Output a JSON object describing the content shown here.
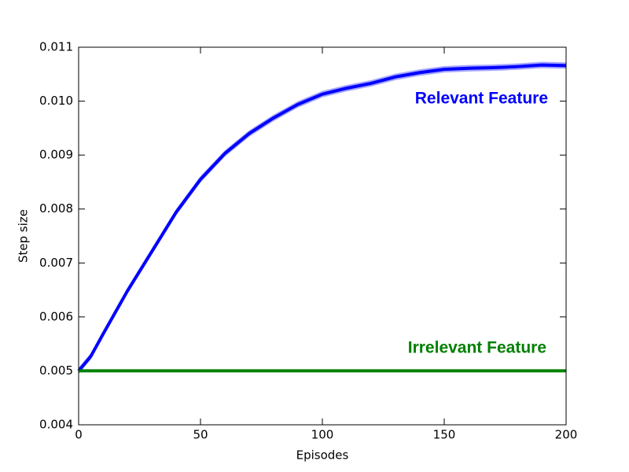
{
  "chart_data": {
    "type": "line",
    "x_label": "Episodes",
    "y_label": "Step size",
    "xlim": [
      0,
      200
    ],
    "ylim": [
      0.004,
      0.011
    ],
    "xticks": [
      0,
      50,
      100,
      150,
      200
    ],
    "yticks": [
      0.004,
      0.005,
      0.006,
      0.007,
      0.008,
      0.009,
      {
        "value": 0.01,
        "label": "0.010"
      },
      0.011
    ],
    "series": [
      {
        "name": "Relevant Feature",
        "color": "#0000ff",
        "x": [
          0,
          5,
          10,
          20,
          30,
          40,
          50,
          60,
          70,
          80,
          90,
          100,
          110,
          120,
          130,
          140,
          150,
          160,
          170,
          180,
          190,
          200
        ],
        "values": [
          0.005,
          0.00527,
          0.00568,
          0.00648,
          0.00721,
          0.00794,
          0.00855,
          0.00903,
          0.0094,
          0.00969,
          0.00994,
          0.01013,
          0.01024,
          0.01033,
          0.01045,
          0.01053,
          0.01059,
          0.01061,
          0.01062,
          0.01064,
          0.01067,
          0.01066
        ],
        "errors": [
          6e-05,
          6e-05,
          6e-05,
          6e-05,
          6e-05,
          6e-05,
          6e-05,
          6e-05,
          6e-05,
          6e-05,
          6e-05,
          6e-05,
          6e-05,
          6e-05,
          6e-05,
          6e-05,
          6e-05,
          6e-05,
          6e-05,
          6e-05,
          6e-05,
          6e-05
        ]
      },
      {
        "name": "Irrelevant Feature",
        "color": "#008000",
        "x": [
          0,
          200
        ],
        "values": [
          0.005,
          0.005
        ]
      }
    ]
  }
}
